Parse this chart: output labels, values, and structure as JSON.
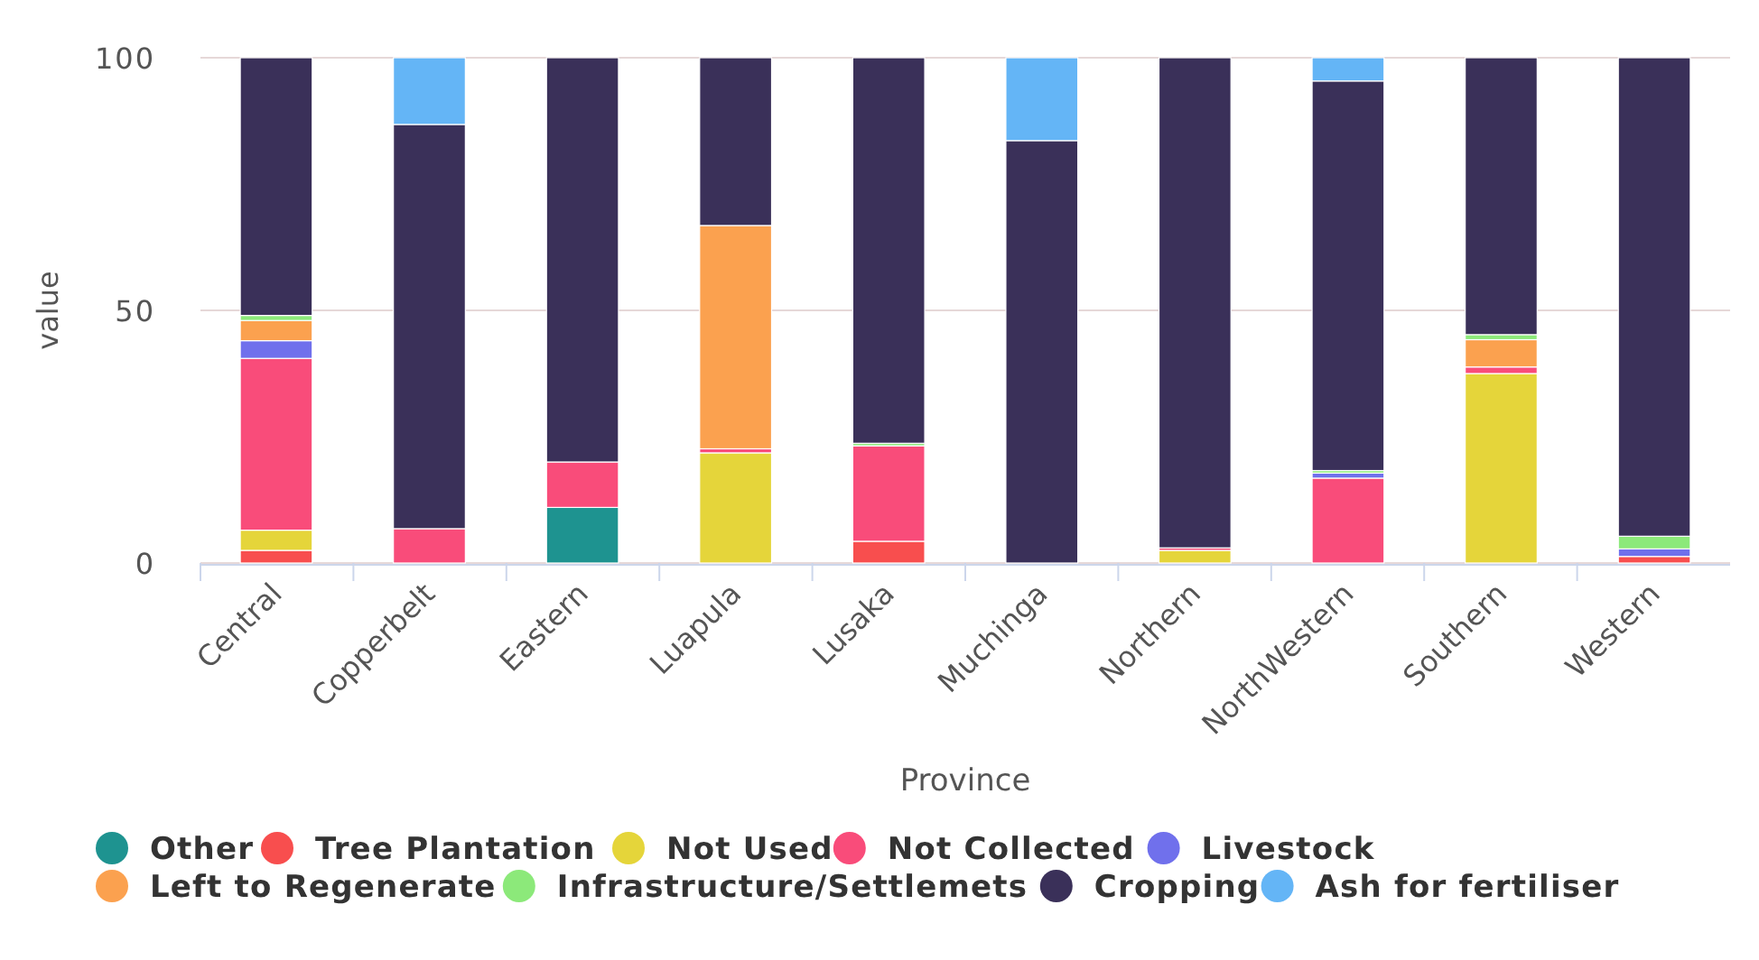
{
  "chart_data": {
    "type": "bar",
    "stacked": true,
    "xlabel": "Province",
    "ylabel": "value",
    "categories": [
      "Central",
      "Copperbelt",
      "Eastern",
      "Luapula",
      "Lusaka",
      "Muchinga",
      "Northern",
      "NorthWestern",
      "Southern",
      "Western"
    ],
    "series": [
      {
        "name": "Other",
        "color": "#1e9390",
        "values": [
          null,
          null,
          11,
          null,
          null,
          null,
          null,
          null,
          null,
          null
        ]
      },
      {
        "name": "Tree Plantation",
        "color": "#f84e4e",
        "values": [
          2.5,
          null,
          null,
          null,
          4.3,
          null,
          null,
          null,
          null,
          1.3
        ]
      },
      {
        "name": "Not Used",
        "color": "#e5d53a",
        "values": [
          4,
          null,
          null,
          21.8,
          null,
          null,
          2.5,
          null,
          37.5,
          null
        ]
      },
      {
        "name": "Not Collected",
        "color": "#f94c7a",
        "values": [
          34,
          6.8,
          9,
          0.8,
          18.9,
          null,
          0.5,
          16.8,
          1.3,
          null
        ]
      },
      {
        "name": "Livestock",
        "color": "#7070ec",
        "values": [
          3.5,
          null,
          null,
          null,
          null,
          null,
          null,
          1,
          null,
          1.5
        ]
      },
      {
        "name": "Left to Regenerate",
        "color": "#fba14f",
        "values": [
          4,
          null,
          null,
          44.2,
          null,
          null,
          null,
          null,
          5.4,
          null
        ]
      },
      {
        "name": "Infrastructure/Settlemets",
        "color": "#8ce97a",
        "values": [
          1,
          null,
          null,
          null,
          0.5,
          null,
          null,
          0.5,
          1,
          2.5
        ]
      },
      {
        "name": "Cropping",
        "color": "#3a3059",
        "values": [
          51,
          80,
          80,
          33.2,
          76.3,
          83.6,
          97,
          77.1,
          54.8,
          94.7
        ]
      },
      {
        "name": "Ash for fertiliser",
        "color": "#64b5f6",
        "values": [
          null,
          13.2,
          null,
          null,
          null,
          16.4,
          null,
          4.6,
          null,
          null
        ]
      }
    ],
    "ylim": [
      0,
      100
    ],
    "yticks": [
      0,
      50,
      100
    ],
    "grid": "y",
    "legend": "bottom"
  }
}
